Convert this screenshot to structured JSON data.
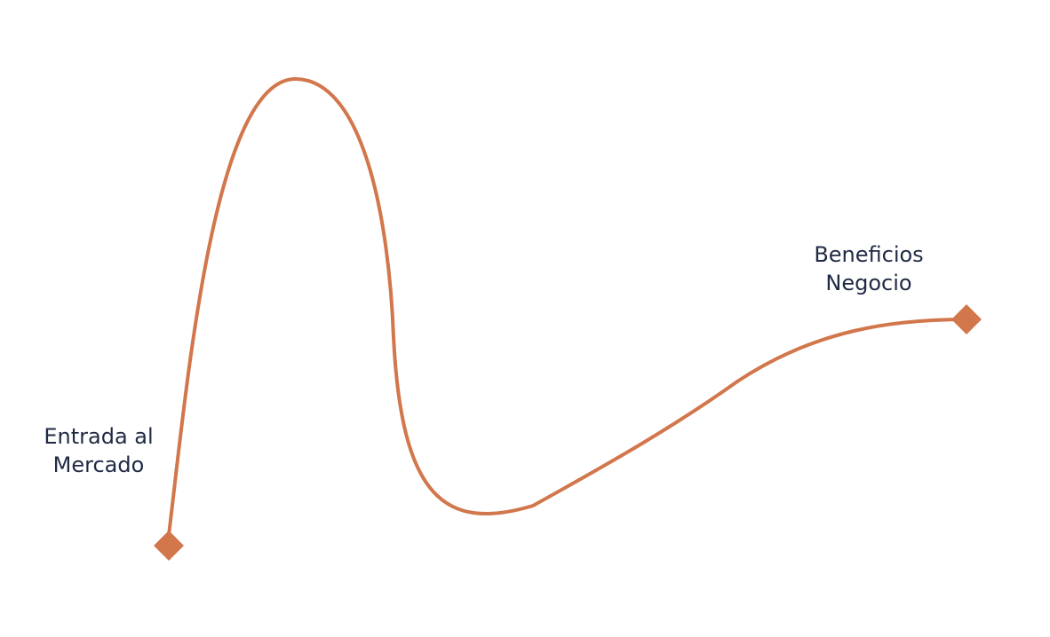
{
  "diagram": {
    "colors": {
      "curve": "#d2764b",
      "text": "#1f2a44",
      "background": "#ffffff"
    },
    "start_marker": {
      "icon": "diamond-marker-icon",
      "label_lines": [
        "Entrada al",
        "Mercado"
      ]
    },
    "end_marker": {
      "icon": "diamond-marker-icon",
      "label_lines": [
        "Beneficios",
        "Negocio"
      ]
    }
  }
}
